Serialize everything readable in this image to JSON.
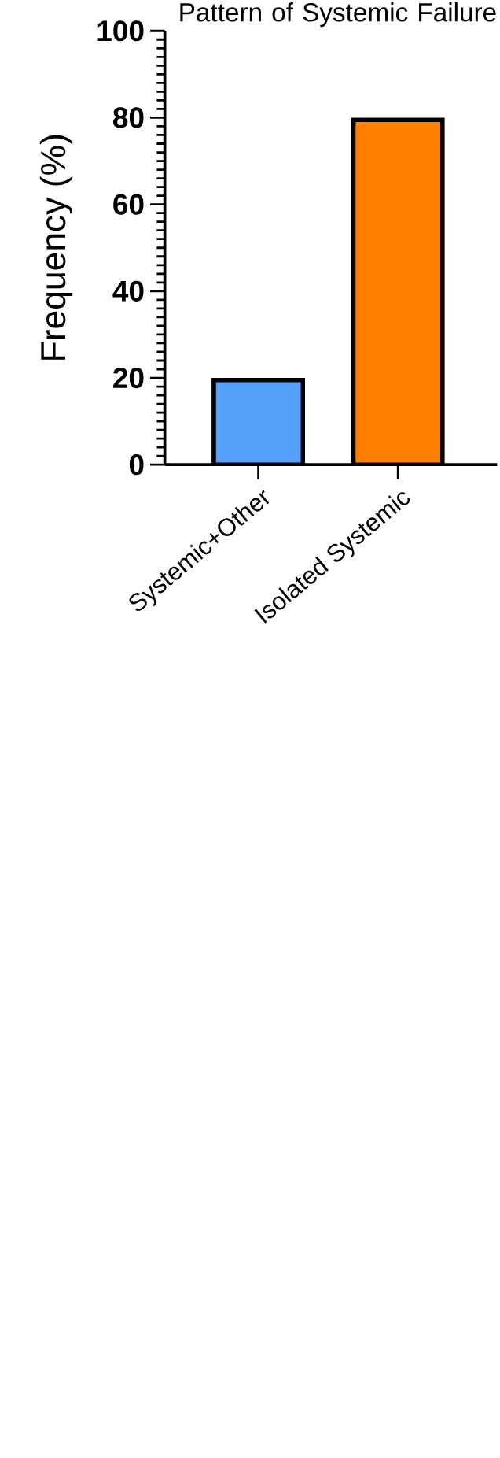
{
  "chart_data": {
    "type": "bar",
    "title": "Pattern of Systemic Failure",
    "ylabel": "Frequency (%)",
    "categories": [
      "Systemic+Other",
      "Isolated Systemic"
    ],
    "values": [
      19.5,
      79.5
    ],
    "colors": [
      "#55a0fb",
      "#ff8000"
    ],
    "ylim": [
      0,
      100
    ],
    "yticks": [
      0,
      20,
      40,
      60,
      80,
      100
    ]
  }
}
